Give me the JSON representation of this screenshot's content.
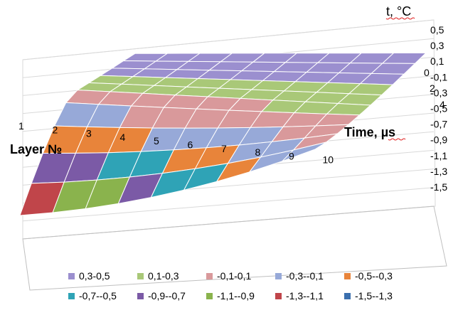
{
  "chart_data": {
    "type": "surface",
    "zlabel": "t, °C",
    "xlabel": "Layer №",
    "ylabel": "Time, µs",
    "layers": [
      1,
      2,
      3,
      4,
      5,
      6,
      7,
      8,
      9,
      10
    ],
    "times": [
      0,
      1,
      2,
      3,
      4,
      5,
      6,
      7,
      8,
      9,
      10
    ],
    "z_ticks": [
      "0,5",
      "0,3",
      "0,1",
      "-0,1",
      "-0,3",
      "-0,5",
      "-0,7",
      "-0,9",
      "-1,1",
      "-1,3",
      "-1,5"
    ],
    "zlim": [
      -1.5,
      0.5
    ],
    "time_tick_labels": [
      "0",
      "2",
      "4"
    ],
    "layer_tick_labels": [
      "1",
      "2",
      "3",
      "4",
      "5",
      "6",
      "7",
      "8",
      "9",
      "10"
    ],
    "series": [
      {
        "name": "0,3-0,5",
        "color": "#9b8fcf"
      },
      {
        "name": "0,1-0,3",
        "color": "#a9c878"
      },
      {
        "name": "-0,1-0,1",
        "color": "#d9999b"
      },
      {
        "name": "-0,3--0,1",
        "color": "#97a9d8"
      },
      {
        "name": "-0,5--0,3",
        "color": "#e8843a"
      },
      {
        "name": "-0,7--0,5",
        "color": "#2fa3b6"
      },
      {
        "name": "-0,9--0,7",
        "color": "#7b5aa6"
      },
      {
        "name": "-1,1--0,9",
        "color": "#8ab34d"
      },
      {
        "name": "-1,3--1,1",
        "color": "#c0454a"
      },
      {
        "name": "-1,5--1,3",
        "color": "#3b6fae"
      }
    ],
    "legend_position": "bottom",
    "grid": true
  }
}
